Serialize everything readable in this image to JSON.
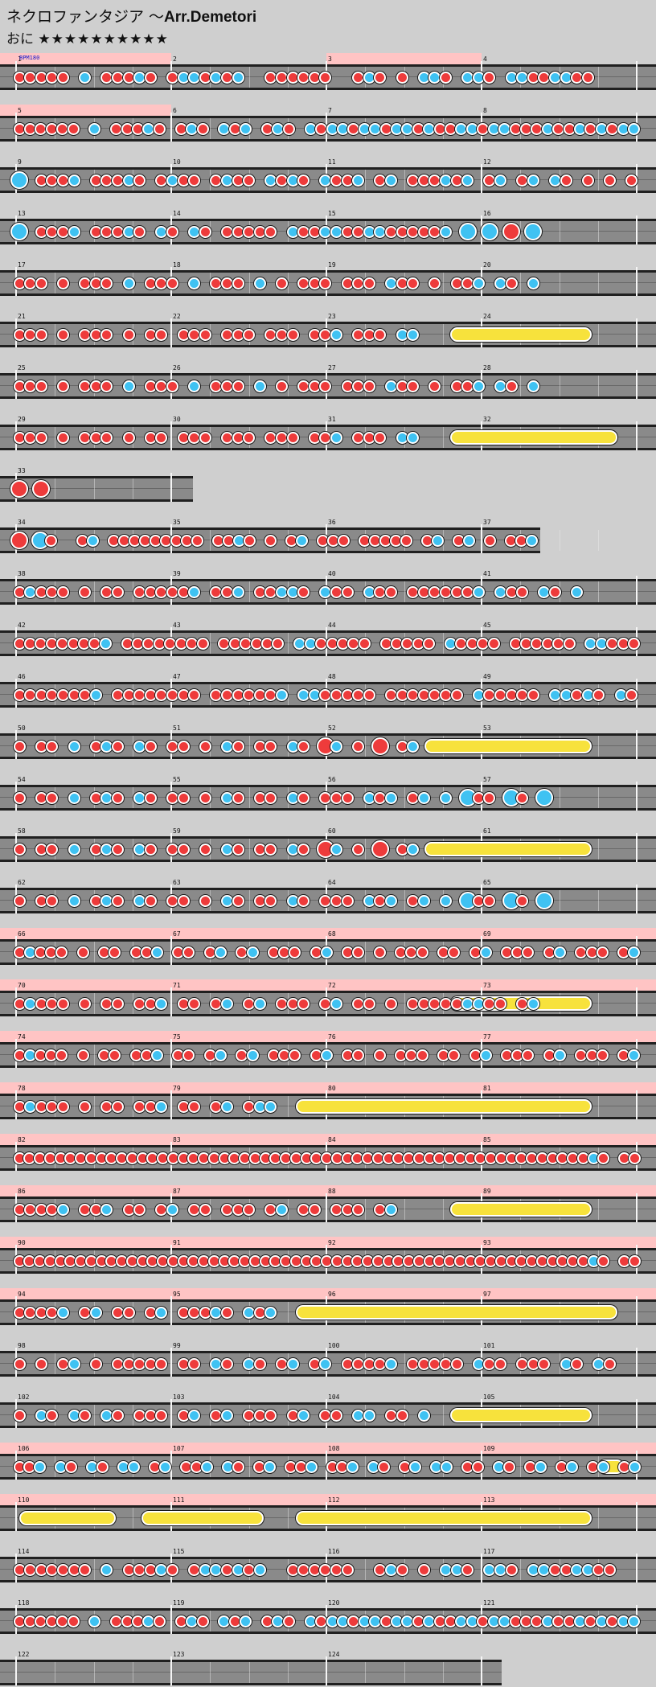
{
  "title": {
    "jp": "ネクロファンタジア ～",
    "en": "Arr.Demetori"
  },
  "difficulty": {
    "label": "おに",
    "stars": "★★★★★★★★★★"
  },
  "bpm_label": "BPM180",
  "colors": {
    "background": "#cfcfcf",
    "lane": "#8a8a8a",
    "gogo": "#ffc4c4",
    "don": "#ee3b3b",
    "ka": "#3fc2f2",
    "roll": "#f7e23c"
  },
  "rows": [
    {
      "measures": [
        1,
        2,
        3,
        4
      ],
      "gogo": [
        [
          0,
          1
        ],
        [
          2,
          3
        ]
      ],
      "notes": "ddddd.k.dddkd.dkkdkdk..dddddd..dkd.d.kkd.kkd.kkddkkdd"
    },
    {
      "measures": [
        5,
        6,
        7,
        8
      ],
      "gogo": [
        [
          0,
          1
        ]
      ],
      "notes": "dddddd.k.dddkd.dkd.kdk.dkd.kdkkdkkdkkdkddkkdkkdddkddkdkdkk"
    },
    {
      "measures": [
        9,
        10,
        11,
        12
      ],
      "notes": "K.dddk.dddkd.dkdd.dkdd.kdkd.kddk.dk.dddkdk.dk.dk.kd.d.d.d",
      "big": "K"
    },
    {
      "measures": [
        13,
        14,
        15,
        16
      ],
      "notes": "K.dddk.dddkd.kd.kd.ddddd.kddkkddkkdddddk.K.K.D.K"
    },
    {
      "measures": [
        17,
        18,
        19,
        20
      ],
      "notes": "ddd.d.ddd.k.ddd.k.ddd.k.d.ddd.ddd.kdd.d.ddk.kd.k"
    },
    {
      "measures": [
        21,
        22,
        23,
        24
      ],
      "notes": "ddd.d.ddd.d.dd.ddd.ddd.ddd.ddk.ddd.kk",
      "roll": [
        0.7,
        0.92
      ]
    },
    {
      "measures": [
        25,
        26,
        27,
        28
      ],
      "notes": "ddd.d.ddd.k.ddd.k.ddd.k.d.ddd.ddd.kdd.d.ddk.kd.k"
    },
    {
      "measures": [
        29,
        30,
        31,
        32
      ],
      "notes": "ddd.d.ddd.d.dd.ddd.ddd.ddd.ddk.ddd.kk",
      "roll": [
        0.7,
        0.96
      ]
    },
    {
      "measures": [
        33
      ],
      "notes": "D.D",
      "width": 240
    },
    {
      "measures": [
        34,
        35,
        36,
        37
      ],
      "notes": "D.Kd..dk.ddddddddd.ddkd.d.dk.ddd.ddddd.dk.dk.d.ddk",
      "width": 672
    },
    {
      "measures": [
        38,
        39,
        40,
        41
      ],
      "notes": "dkddd.d.dd.dddddk.ddk.ddkkd.kdd.kdd.ddddddk.kdd.kd.k"
    },
    {
      "measures": [
        42,
        43,
        44,
        45
      ],
      "notes": "ddddddddk.dddddddd.dddddd.kkddddd.ddddd.kdddd.dddddd.kkddd"
    },
    {
      "measures": [
        46,
        47,
        48,
        49
      ],
      "notes": "dddddddk.dddddddd.ddddddk.kkddddd.ddddddd.kddddd.kkdkd.kd"
    },
    {
      "measures": [
        50,
        51,
        52,
        53
      ],
      "notes": "d.dd.k.dkd.kd.dd.d.kd.dd.kd.Dk.d.D.dk",
      "roll": [
        0.66,
        0.92
      ]
    },
    {
      "measures": [
        54,
        55,
        56,
        57
      ],
      "notes": "d.dd.k.dkd.kd.dd.d.kd.dd.kd.ddd.kdk.dk.k.Kdd.Kd.K"
    },
    {
      "measures": [
        58,
        59,
        60,
        61
      ],
      "notes": "d.dd.k.dkd.kd.dd.d.kd.dd.kd.Dk.d.D.dk",
      "roll": [
        0.66,
        0.92
      ]
    },
    {
      "measures": [
        62,
        63,
        64,
        65
      ],
      "notes": "d.dd.k.dkd.kd.dd.d.kd.dd.kd.ddd.kdk.dk.k.Kdd.Kd.K"
    },
    {
      "measures": [
        66,
        67,
        68,
        69
      ],
      "gogo": [
        [
          0,
          4
        ]
      ],
      "notes": "dkddd.d.dd.ddk.dd.dk.dk.ddd.dk.dd.d.ddd.dd.dk.ddd.dk.ddd.dk"
    },
    {
      "measures": [
        70,
        71,
        72,
        73
      ],
      "gogo": [
        [
          0,
          4
        ]
      ],
      "notes": "dkddd.d.dd.ddk.dd.dk.dk.ddd.dk.dd.d.dddddkkdd.dk",
      "roll": [
        0.7,
        0.92
      ]
    },
    {
      "measures": [
        74,
        75,
        76,
        77
      ],
      "gogo": [
        [
          0,
          4
        ]
      ],
      "notes": "dkddd.d.dd.ddk.dd.dk.dk.ddd.dk.dd.d.ddd.dd.dk.ddd.dk.ddd.dk"
    },
    {
      "measures": [
        78,
        79,
        80,
        81
      ],
      "gogo": [
        [
          0,
          4
        ]
      ],
      "notes": "dkddd.d.dd.ddk.dd.dk.dkk",
      "roll": [
        0.46,
        0.92
      ]
    },
    {
      "measures": [
        82,
        83,
        84,
        85
      ],
      "gogo": [
        [
          0,
          4
        ]
      ],
      "notes": "ddddddddddddddddddddddddddddddddddddddddddddddddddddddddkd.dd"
    },
    {
      "measures": [
        86,
        87,
        88,
        89
      ],
      "gogo": [
        [
          0,
          4
        ]
      ],
      "notes": "ddddk.ddk.dd.dk.dd.ddd.dk.dd.ddd.dk",
      "roll": [
        0.7,
        0.92
      ]
    },
    {
      "measures": [
        90,
        91,
        92,
        93
      ],
      "gogo": [
        [
          0,
          4
        ]
      ],
      "notes": "ddddddddddddddddddddddddddddddddddddddddddddddddddddddddkd.dd"
    },
    {
      "measures": [
        94,
        95,
        96,
        97
      ],
      "gogo": [
        [
          0,
          4
        ]
      ],
      "notes": "ddddk.dk.dd.dk.dddkd.kdk",
      "roll": [
        0.46,
        0.96
      ]
    },
    {
      "measures": [
        98,
        99,
        100,
        101
      ],
      "notes": "d.d.dk.d.ddddd.dd.kd.kd.dk.dk.ddddk.ddddd.kdd.ddd.kd.kd"
    },
    {
      "measures": [
        102,
        103,
        104,
        105
      ],
      "notes": "d.kd.kd.kd.ddd.dk.dk.ddd.dk.dd.kk.dd.k",
      "roll": [
        0.7,
        0.92
      ]
    },
    {
      "measures": [
        106,
        107,
        108,
        109
      ],
      "gogo": [
        [
          0,
          4
        ]
      ],
      "notes": "ddk.kd.kd.kk.dk.ddk.kd.dk.ddk.ddk.kd.dk.kk.dd.kd.dk.dk.dk.dk",
      "roll": [
        0.93,
        0.97
      ]
    },
    {
      "measures": [
        110,
        111,
        112,
        113
      ],
      "gogo": [
        [
          0,
          4
        ]
      ],
      "notes": "",
      "rolls": [
        [
          0.03,
          0.18
        ],
        [
          0.22,
          0.41
        ],
        [
          0.46,
          0.92
        ]
      ]
    },
    {
      "measures": [
        114,
        115,
        116,
        117
      ],
      "notes": "ddddddd.k.dddkd.dkkdkdk..dddddd..dkd.d.kkd.kkd.kkddkkdd"
    },
    {
      "measures": [
        118,
        119,
        120,
        121
      ],
      "notes": "dddddd.k.dddkd.dkd.kdk.dkd.kdkkdkkdkkdkddkkdkkdddkddkdkdkk"
    },
    {
      "measures": [
        122,
        123,
        124
      ],
      "notes": "",
      "width": 624
    }
  ]
}
